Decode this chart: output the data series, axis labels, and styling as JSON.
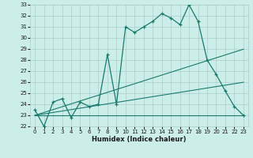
{
  "xlabel": "Humidex (Indice chaleur)",
  "background_color": "#cceee8",
  "line_color": "#1a7a6e",
  "grid_color": "#aacccc",
  "x_values": [
    0,
    1,
    2,
    3,
    4,
    5,
    6,
    7,
    8,
    9,
    10,
    11,
    12,
    13,
    14,
    15,
    16,
    17,
    18,
    19,
    20,
    21,
    22,
    23
  ],
  "y_main": [
    23.5,
    22.0,
    24.2,
    24.5,
    22.8,
    24.2,
    23.8,
    24.0,
    28.5,
    24.0,
    31.0,
    30.5,
    31.0,
    31.5,
    32.2,
    31.8,
    31.2,
    33.0,
    31.5,
    28.0,
    26.7,
    25.2,
    23.8,
    23.0
  ],
  "y_trend1": [
    23.0,
    23.26,
    23.52,
    23.78,
    24.04,
    24.3,
    24.56,
    24.82,
    25.08,
    25.34,
    25.6,
    25.86,
    26.12,
    26.38,
    26.64,
    26.9,
    27.16,
    27.42,
    27.68,
    27.94,
    28.2,
    28.46,
    28.72,
    28.98
  ],
  "y_trend2": [
    23.0,
    23.13,
    23.26,
    23.39,
    23.52,
    23.65,
    23.78,
    23.91,
    24.04,
    24.17,
    24.3,
    24.43,
    24.56,
    24.69,
    24.82,
    24.95,
    25.08,
    25.21,
    25.34,
    25.47,
    25.6,
    25.73,
    25.86,
    25.99
  ],
  "y_flat": [
    23.0,
    23.0,
    23.0,
    23.0,
    23.0,
    23.0,
    23.0,
    23.0,
    23.0,
    23.0,
    23.0,
    23.0,
    23.0,
    23.0,
    23.0,
    23.0,
    23.0,
    23.0,
    23.0,
    23.0,
    23.0,
    23.0,
    23.0,
    23.0
  ],
  "ylim": [
    22,
    33
  ],
  "xlim": [
    -0.5,
    23.5
  ],
  "yticks": [
    22,
    23,
    24,
    25,
    26,
    27,
    28,
    29,
    30,
    31,
    32,
    33
  ],
  "xticks": [
    0,
    1,
    2,
    3,
    4,
    5,
    6,
    7,
    8,
    9,
    10,
    11,
    12,
    13,
    14,
    15,
    16,
    17,
    18,
    19,
    20,
    21,
    22,
    23
  ]
}
